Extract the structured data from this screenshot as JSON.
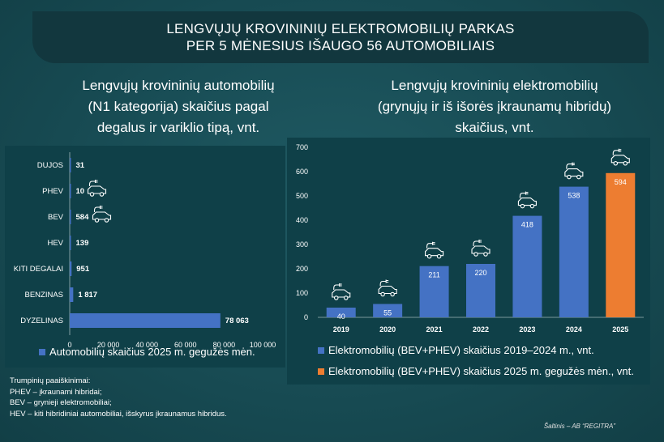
{
  "banner": {
    "line1": "LENGVŲJŲ KROVININIŲ ELEKTROMOBILIŲ PARKAS",
    "line2": "PER 5 MĖNESIUS IŠAUGO 56 AUTOMOBILIAIS"
  },
  "colors": {
    "blue": "#4472c4",
    "orange": "#ed7d31",
    "panel": "#0f4048"
  },
  "chart_data": [
    {
      "type": "bar",
      "orientation": "horizontal",
      "title_lines": [
        "Lengvųjų krovininių automobilių",
        "(N1 kategorija) skaičius pagal",
        "degalus ir variklio tipą, vnt."
      ],
      "categories": [
        "DUJOS",
        "PHEV",
        "BEV",
        "HEV",
        "KITI DEGALAI",
        "BENZINAS",
        "DYZELINAS"
      ],
      "values": [
        31,
        10,
        584,
        139,
        951,
        1817,
        78063
      ],
      "value_labels": [
        "31",
        "10",
        "584",
        "139",
        "951",
        "1 817",
        "78 063"
      ],
      "icons": [
        "",
        "electric-car-icon",
        "electric-car-icon",
        "",
        "",
        "",
        ""
      ],
      "xlim": [
        0,
        100000
      ],
      "xticks": [
        "0",
        "20 000",
        "40 000",
        "60 000",
        "80 000",
        "100 000"
      ],
      "series": [
        {
          "name": "Automobilių skaičius 2025 m. gegužės mėn.",
          "color": "#4472c4"
        }
      ],
      "legend_position": "bottom"
    },
    {
      "type": "bar",
      "title_lines": [
        "Lengvųjų krovininių elektromobilių",
        "(grynųjų ir iš išorės įkraunamų hibridų)",
        "skaičius, vnt."
      ],
      "categories": [
        "2019",
        "2020",
        "2021",
        "2022",
        "2023",
        "2024",
        "2025"
      ],
      "values": [
        40,
        55,
        211,
        220,
        418,
        538,
        594
      ],
      "ylim": [
        0,
        700
      ],
      "yticks": [
        "0",
        "100",
        "200",
        "300",
        "400",
        "500",
        "600",
        "700"
      ],
      "series": [
        {
          "name": "Elektromobilių (BEV+PHEV) skaičius 2019–2024 m., vnt.",
          "color": "#4472c4"
        },
        {
          "name": "Elektromobilių (BEV+PHEV) skaičius 2025 m. gegužės mėn., vnt.",
          "color": "#ed7d31"
        }
      ],
      "legend_position": "bottom",
      "gridlines": false
    }
  ],
  "notes": {
    "title": "Trumpinių paaiškinimai:",
    "lines": [
      "PHEV – įkraunami hibridai;",
      "BEV – grynieji elektromobiliai;",
      "HEV – kiti hibridiniai automobiliai, išskyrus įkraunamus hibridus."
    ]
  },
  "source": "Šaltinis – AB “REGITRA”"
}
